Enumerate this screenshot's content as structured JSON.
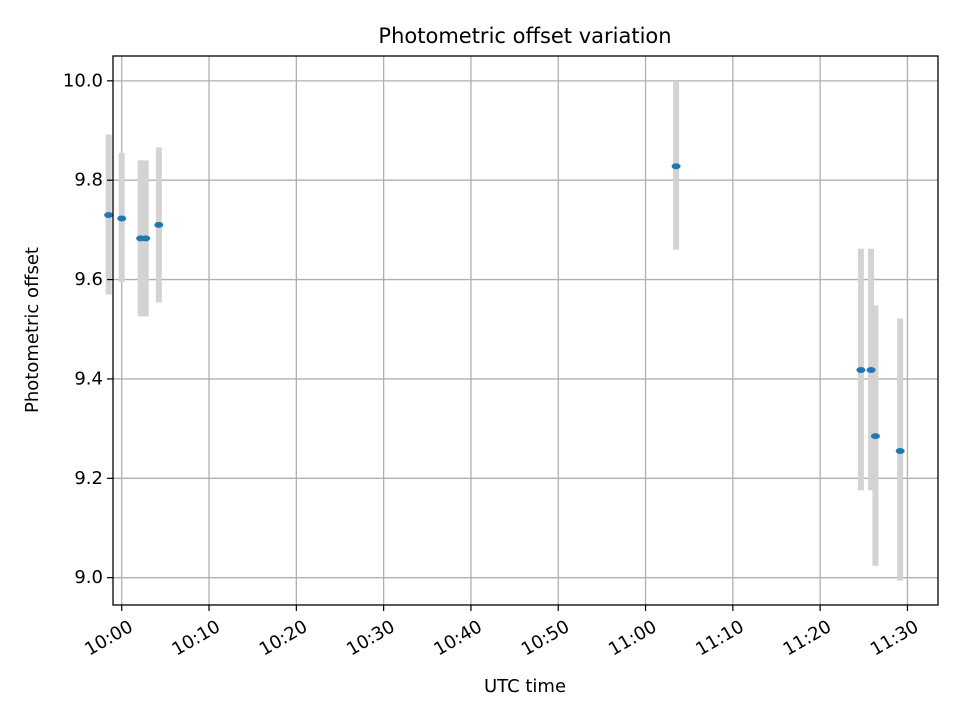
{
  "chart_data": {
    "type": "scatter",
    "title": "Photometric offset variation",
    "xlabel": "UTC time",
    "ylabel": "Photometric offset",
    "x_axis_type": "time",
    "xlim": [
      "09:59:00",
      "11:33:30"
    ],
    "ylim": [
      8.945,
      10.05
    ],
    "x_ticks": [
      "10:00",
      "10:10",
      "10:20",
      "10:30",
      "10:40",
      "10:50",
      "11:00",
      "11:10",
      "11:20",
      "11:30"
    ],
    "y_ticks": [
      "9.0",
      "9.2",
      "9.4",
      "9.6",
      "9.8",
      "10.0"
    ],
    "grid": true,
    "colors": {
      "point": "#1f77b4",
      "errorbar": "#d3d3d3",
      "grid": "#b0b0b0"
    },
    "series": [
      {
        "points": [
          {
            "x": "09:58:30",
            "y": 9.73,
            "yerr_low": 9.57,
            "yerr_high": 9.892
          },
          {
            "x": "10:00:00",
            "y": 9.723,
            "yerr_low": 9.595,
            "yerr_high": 9.855
          },
          {
            "x": "10:02:10",
            "y": 9.683,
            "yerr_low": 9.526,
            "yerr_high": 9.84
          },
          {
            "x": "10:02:45",
            "y": 9.683,
            "yerr_low": 9.526,
            "yerr_high": 9.84
          },
          {
            "x": "10:04:15",
            "y": 9.71,
            "yerr_low": 9.554,
            "yerr_high": 9.866
          },
          {
            "x": "11:03:30",
            "y": 9.828,
            "yerr_low": 9.66,
            "yerr_high": 10.0
          },
          {
            "x": "11:24:40",
            "y": 9.418,
            "yerr_low": 9.176,
            "yerr_high": 9.662
          },
          {
            "x": "11:25:50",
            "y": 9.418,
            "yerr_low": 9.176,
            "yerr_high": 9.662
          },
          {
            "x": "11:26:20",
            "y": 9.285,
            "yerr_low": 9.024,
            "yerr_high": 9.548
          },
          {
            "x": "11:29:10",
            "y": 9.255,
            "yerr_low": 8.994,
            "yerr_high": 9.522
          }
        ]
      }
    ]
  }
}
